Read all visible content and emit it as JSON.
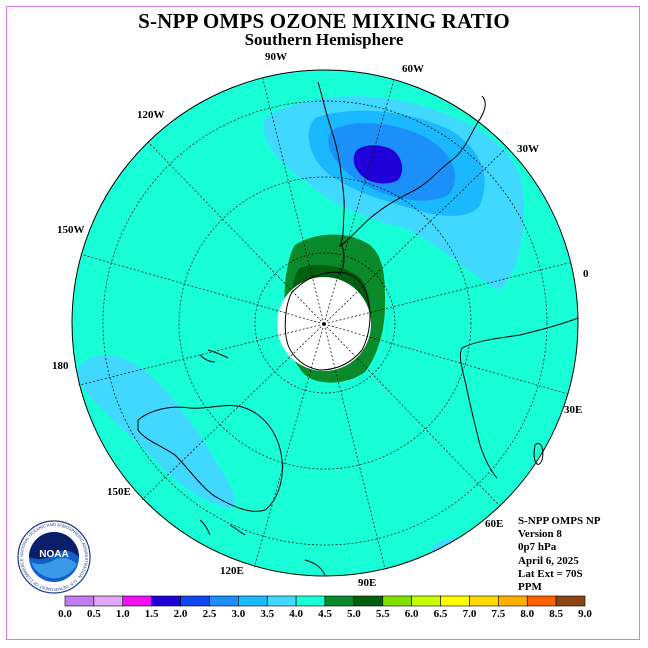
{
  "title": "S-NPP OMPS OZONE MIXING RATIO",
  "subtitle": "Southern Hemisphere",
  "longitude_labels": [
    "90W",
    "60W",
    "120W",
    "30W",
    "150W",
    "0",
    "180",
    "30E",
    "150E",
    "60E",
    "120E",
    "90E"
  ],
  "info": {
    "line1": "S-NPP OMPS NP",
    "line2": "Version 8",
    "line3": "0p7 hPa",
    "line4": "April 6, 2025",
    "line5": "Lat Ext = 70S",
    "line6": "PPM"
  },
  "logo": {
    "text": "NOAA",
    "ring_text": "NATIONAL OCEANIC AND ATMOSPHERIC ADMINISTRATION · U.S. DEPARTMENT OF COMMERCE"
  },
  "colorbar": {
    "labels": [
      "0.0",
      "0.5",
      "1.0",
      "1.5",
      "2.0",
      "2.5",
      "3.0",
      "3.5",
      "4.0",
      "4.5",
      "5.0",
      "5.5",
      "6.0",
      "6.5",
      "7.0",
      "7.5",
      "8.0",
      "8.5",
      "9.0"
    ],
    "colors": [
      "#c07cf0",
      "#e0a8f8",
      "#f010f0",
      "#2000d8",
      "#1048f0",
      "#1a90f8",
      "#1ab8ff",
      "#40d8ff",
      "#18ffd8",
      "#0a8a2a",
      "#006010",
      "#80e000",
      "#c8ff00",
      "#ffff00",
      "#ffd800",
      "#ffb000",
      "#ff6000",
      "#ff0000",
      "#8b4513"
    ]
  }
}
